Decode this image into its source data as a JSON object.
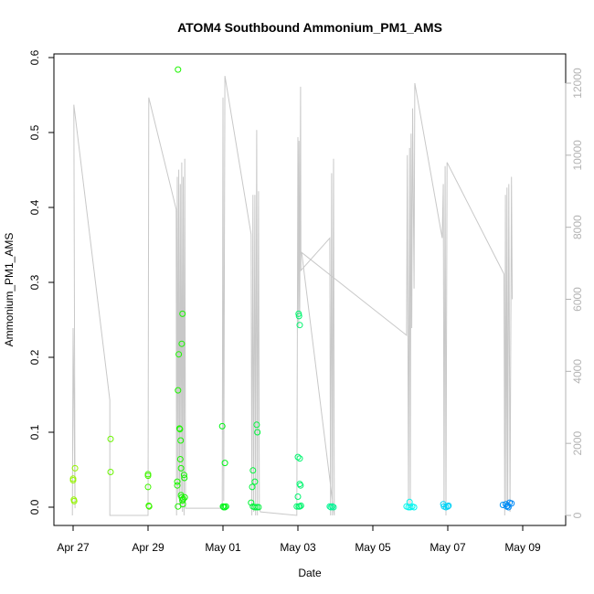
{
  "chart_data": {
    "type": "scatter",
    "title": "ATOM4 Southbound Ammonium_PM1_AMS",
    "xlabel": "Date",
    "ylabel": "Ammonium_PM1_AMS",
    "x_ticks": [
      "Apr 27",
      "Apr 29",
      "May 01",
      "May 03",
      "May 05",
      "May 07",
      "May 09"
    ],
    "y_ticks": [
      "0.0",
      "0.1",
      "0.2",
      "0.3",
      "0.4",
      "0.5",
      "0.6"
    ],
    "y2_ticks": [
      "0",
      "2000",
      "4000",
      "6000",
      "8000",
      "10000",
      "12000"
    ],
    "xlim_days": [
      26.75,
      36.25
    ],
    "ylim": [
      -0.01,
      0.605
    ],
    "y2lim": [
      -200,
      12000
    ],
    "colors": {
      "altitude_line": "#c8c8c8",
      "right_axis": "#b3b3b3"
    },
    "points": [
      [
        27.0,
        0.036
      ],
      [
        27.0,
        0.038
      ],
      [
        27.02,
        0.01
      ],
      [
        27.03,
        0.008
      ],
      [
        27.05,
        0.052
      ],
      [
        28.0,
        0.091
      ],
      [
        28.0,
        0.047
      ],
      [
        29.0,
        0.044
      ],
      [
        29.0,
        0.042
      ],
      [
        29.0,
        0.027
      ],
      [
        29.02,
        0.002
      ],
      [
        29.03,
        0.001
      ],
      [
        29.8,
        0.584
      ],
      [
        29.78,
        0.034
      ],
      [
        29.78,
        0.029
      ],
      [
        29.8,
        0.001
      ],
      [
        29.8,
        0.156
      ],
      [
        29.82,
        0.204
      ],
      [
        29.84,
        0.105
      ],
      [
        29.85,
        0.104
      ],
      [
        29.86,
        0.064
      ],
      [
        29.87,
        0.089
      ],
      [
        29.88,
        0.016
      ],
      [
        29.88,
        0.052
      ],
      [
        29.9,
        0.218
      ],
      [
        29.92,
        0.258
      ],
      [
        29.9,
        0.013
      ],
      [
        29.92,
        0.009
      ],
      [
        29.93,
        0.004
      ],
      [
        29.94,
        0.011
      ],
      [
        29.96,
        0.043
      ],
      [
        29.98,
        0.013
      ],
      [
        29.97,
        0.039
      ],
      [
        30.98,
        0.108
      ],
      [
        31.05,
        0.059
      ],
      [
        31.0,
        0.001
      ],
      [
        31.02,
        0.0
      ],
      [
        31.05,
        0.0
      ],
      [
        31.08,
        0.001
      ],
      [
        31.75,
        0.006
      ],
      [
        31.78,
        0.027
      ],
      [
        31.8,
        0.049
      ],
      [
        31.85,
        0.034
      ],
      [
        31.9,
        0.11
      ],
      [
        31.92,
        0.1
      ],
      [
        31.8,
        0.001
      ],
      [
        31.85,
        0.0
      ],
      [
        31.9,
        0.0
      ],
      [
        31.95,
        0.0
      ],
      [
        33.0,
        0.067
      ],
      [
        33.02,
        0.258
      ],
      [
        33.03,
        0.255
      ],
      [
        33.05,
        0.243
      ],
      [
        33.05,
        0.065
      ],
      [
        33.05,
        0.031
      ],
      [
        33.07,
        0.029
      ],
      [
        33.0,
        0.014
      ],
      [
        33.02,
        0.001
      ],
      [
        33.05,
        0.001
      ],
      [
        33.08,
        0.002
      ],
      [
        32.97,
        0.001
      ],
      [
        33.85,
        0.001
      ],
      [
        33.88,
        0.0
      ],
      [
        33.92,
        0.001
      ],
      [
        33.95,
        0.0
      ],
      [
        35.98,
        0.007
      ],
      [
        35.9,
        0.001
      ],
      [
        35.95,
        0.0
      ],
      [
        36.0,
        0.0
      ],
      [
        36.05,
        0.001
      ],
      [
        36.1,
        0.0
      ],
      [
        36.88,
        0.004
      ],
      [
        36.9,
        0.001
      ],
      [
        36.95,
        0.0
      ],
      [
        37.0,
        0.001
      ],
      [
        37.02,
        0.002
      ],
      [
        38.47,
        0.003
      ],
      [
        38.55,
        0.004
      ],
      [
        38.6,
        0.002
      ],
      [
        38.65,
        0.006
      ],
      [
        38.7,
        0.005
      ],
      [
        38.57,
        0.001
      ],
      [
        38.62,
        0.0
      ]
    ],
    "altitude_series": [
      [
        26.98,
        0
      ],
      [
        27.0,
        5200
      ],
      [
        27.05,
        200
      ],
      [
        27.02,
        11400
      ],
      [
        27.98,
        3200
      ],
      [
        27.98,
        0
      ],
      [
        29.0,
        0
      ],
      [
        29.02,
        11600
      ],
      [
        29.75,
        8500
      ],
      [
        29.76,
        0
      ],
      [
        29.78,
        9400
      ],
      [
        29.8,
        500
      ],
      [
        29.82,
        9600
      ],
      [
        29.84,
        300
      ],
      [
        29.86,
        9200
      ],
      [
        29.88,
        200
      ],
      [
        29.9,
        9800
      ],
      [
        29.92,
        100
      ],
      [
        29.94,
        9400
      ],
      [
        29.96,
        0
      ],
      [
        29.98,
        9900
      ],
      [
        30.0,
        200
      ],
      [
        30.98,
        200
      ],
      [
        31.0,
        11600
      ],
      [
        31.02,
        400
      ],
      [
        31.05,
        12200
      ],
      [
        31.75,
        7800
      ],
      [
        31.77,
        0
      ],
      [
        31.8,
        8900
      ],
      [
        31.82,
        100
      ],
      [
        31.85,
        8900
      ],
      [
        31.87,
        0
      ],
      [
        31.9,
        10700
      ],
      [
        31.92,
        0
      ],
      [
        31.95,
        9000
      ],
      [
        31.97,
        200
      ],
      [
        32.0,
        100
      ],
      [
        32.97,
        0
      ],
      [
        33.0,
        10500
      ],
      [
        33.02,
        5200
      ],
      [
        33.03,
        10400
      ],
      [
        33.05,
        5600
      ],
      [
        33.07,
        11900
      ],
      [
        33.08,
        6800
      ],
      [
        33.85,
        7700
      ],
      [
        33.87,
        0
      ],
      [
        33.9,
        9500
      ],
      [
        33.92,
        0
      ],
      [
        33.95,
        9900
      ],
      [
        33.97,
        0
      ],
      [
        33.1,
        7300
      ],
      [
        35.9,
        5000
      ],
      [
        35.92,
        10000
      ],
      [
        35.95,
        300
      ],
      [
        35.98,
        10200
      ],
      [
        36.0,
        200
      ],
      [
        36.02,
        10600
      ],
      [
        36.04,
        5200
      ],
      [
        36.06,
        11300
      ],
      [
        36.1,
        6300
      ],
      [
        36.12,
        12000
      ],
      [
        36.85,
        7700
      ],
      [
        36.88,
        9200
      ],
      [
        36.9,
        200
      ],
      [
        36.93,
        9700
      ],
      [
        36.95,
        0
      ],
      [
        36.98,
        9800
      ],
      [
        38.5,
        6700
      ],
      [
        38.52,
        0
      ],
      [
        38.54,
        8900
      ],
      [
        38.56,
        200
      ],
      [
        38.58,
        9100
      ],
      [
        38.6,
        300
      ],
      [
        38.63,
        9200
      ],
      [
        38.66,
        100
      ],
      [
        38.7,
        9400
      ],
      [
        38.72,
        6000
      ]
    ]
  }
}
